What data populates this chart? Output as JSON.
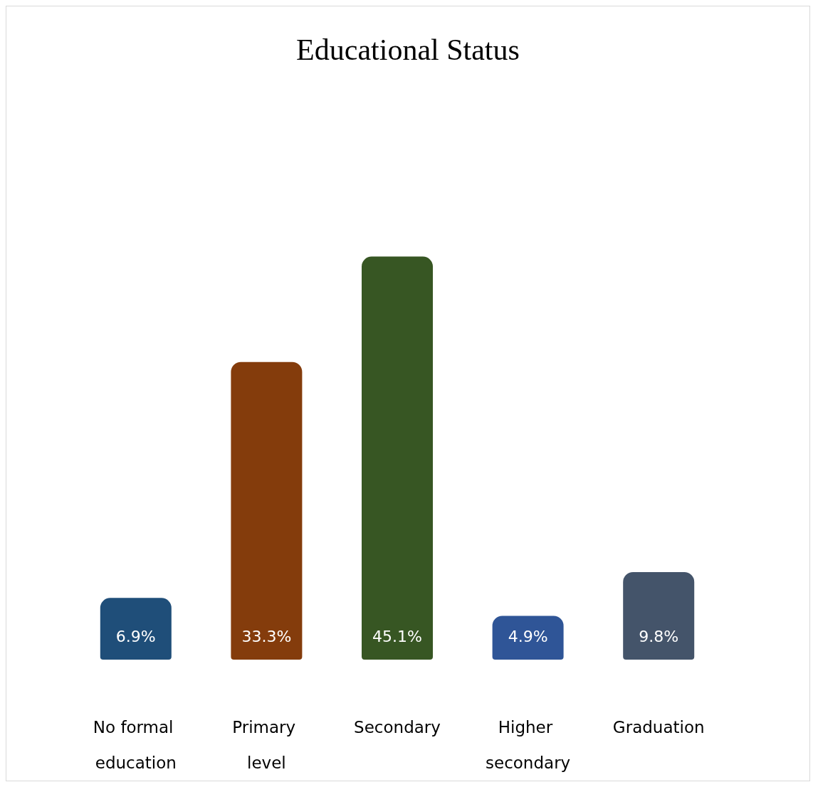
{
  "chart_data": {
    "type": "bar",
    "title": "Educational Status",
    "categories": [
      "No formal education",
      "Primary level",
      "Secondary",
      "Higher secondary",
      "Graduation"
    ],
    "values": [
      6.9,
      33.3,
      45.1,
      4.9,
      9.8
    ],
    "colors": [
      "#1f4e79",
      "#843c0c",
      "#375623",
      "#2f5597",
      "#44546a"
    ],
    "value_labels": [
      "6.9%",
      "33.3%",
      "45.1%",
      "4.9%",
      "9.8%"
    ]
  }
}
